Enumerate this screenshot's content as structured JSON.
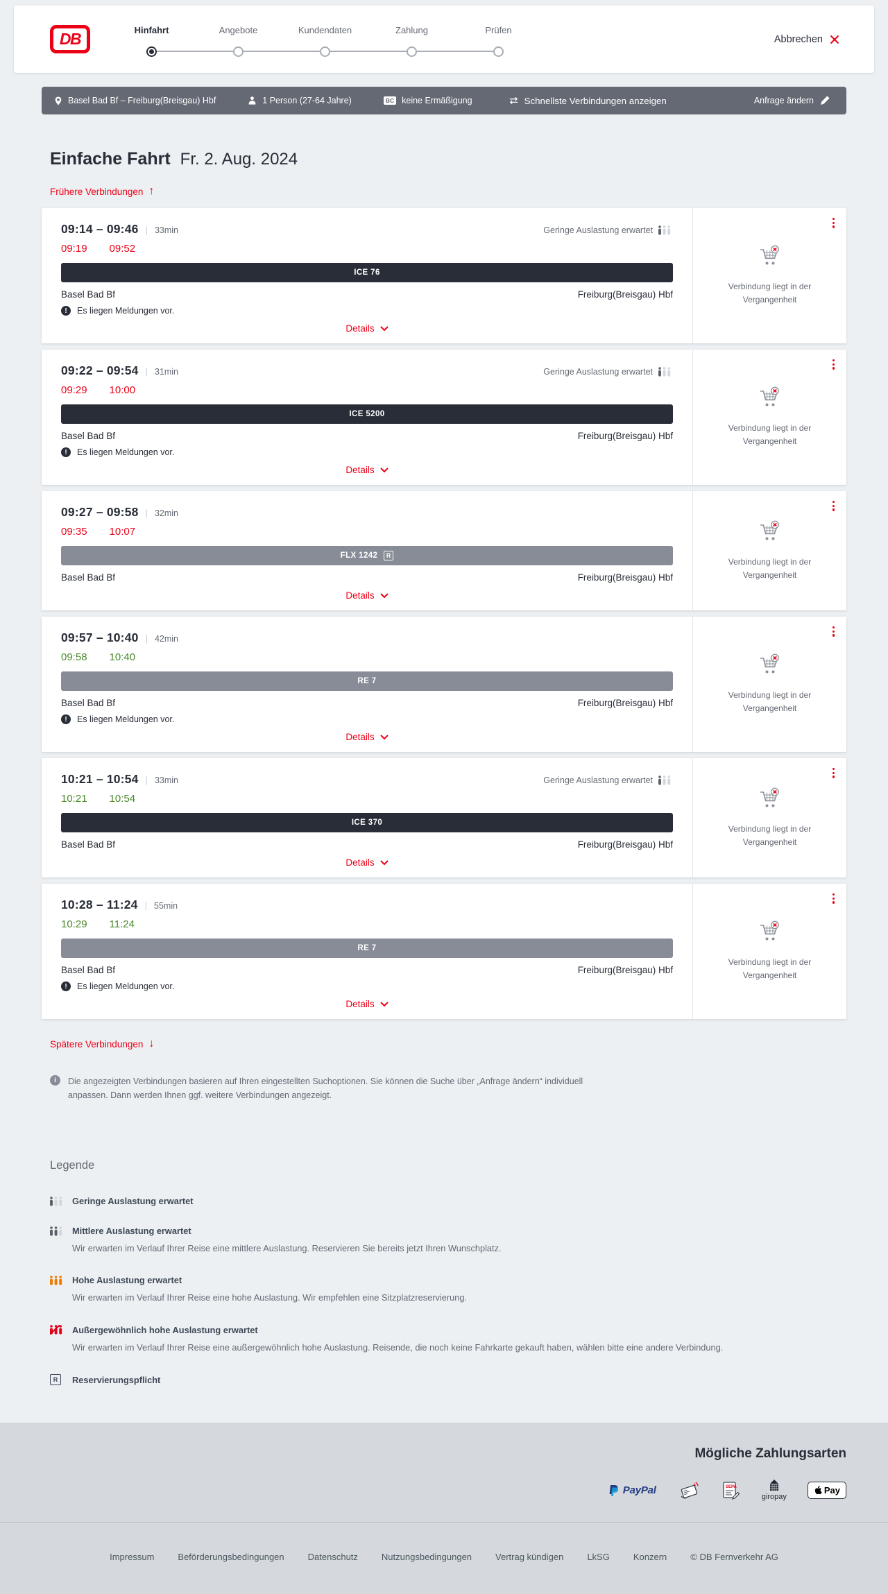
{
  "header": {
    "logo_text": "DB",
    "steps": [
      {
        "label": "Hinfahrt"
      },
      {
        "label": "Angebote"
      },
      {
        "label": "Kundendaten"
      },
      {
        "label": "Zahlung"
      },
      {
        "label": "Prüfen"
      }
    ],
    "active_step": 0,
    "cancel_label": "Abbrechen"
  },
  "query_bar": {
    "route": "Basel Bad Bf – Freiburg(Breisgau) Hbf",
    "passengers": "1 Person (27-64 Jahre)",
    "bahncard_badge": "BC",
    "discount": "keine Ermäßigung",
    "view_option": "Schnellste Verbindungen anzeigen",
    "edit_request": "Anfrage ändern"
  },
  "results": {
    "title": "Einfache Fahrt",
    "date": "Fr. 2. Aug. 2024",
    "earlier_link": "Frühere Verbindungen",
    "later_link": "Spätere Verbindungen",
    "details_label": "Details",
    "past_note": "Verbindung liegt in der Vergangenheit",
    "info_note": "Die angezeigten Verbindungen basieren auf Ihren eingestellten Suchoptionen. Sie können die Suche über „Anfrage ändern“ individuell anpassen. Dann werden Ihnen ggf. weitere Verbindungen angezeigt."
  },
  "connections": [
    {
      "planned": "09:14 – 09:46",
      "duration": "33min",
      "occupancy": "Geringe Auslastung erwartet",
      "actual_departure": "09:19",
      "actual_arrival": "09:52",
      "status": "delayed",
      "train": "ICE 76",
      "train_class": "ice",
      "reservation_required": false,
      "from": "Basel Bad Bf",
      "to": "Freiburg(Breisgau) Hbf",
      "message": "Es liegen Meldungen vor."
    },
    {
      "planned": "09:22 – 09:54",
      "duration": "31min",
      "occupancy": "Geringe Auslastung erwartet",
      "actual_departure": "09:29",
      "actual_arrival": "10:00",
      "status": "delayed",
      "train": "ICE 5200",
      "train_class": "ice",
      "reservation_required": false,
      "from": "Basel Bad Bf",
      "to": "Freiburg(Breisgau) Hbf",
      "message": "Es liegen Meldungen vor."
    },
    {
      "planned": "09:27 – 09:58",
      "duration": "32min",
      "occupancy": null,
      "actual_departure": "09:35",
      "actual_arrival": "10:07",
      "status": "delayed",
      "train": "FLX 1242",
      "train_class": "regio",
      "reservation_required": true,
      "from": "Basel Bad Bf",
      "to": "Freiburg(Breisgau) Hbf",
      "message": null
    },
    {
      "planned": "09:57 – 10:40",
      "duration": "42min",
      "occupancy": null,
      "actual_departure": "09:58",
      "actual_arrival": "10:40",
      "status": "ontime",
      "train": "RE 7",
      "train_class": "regio",
      "reservation_required": false,
      "from": "Basel Bad Bf",
      "to": "Freiburg(Breisgau) Hbf",
      "message": "Es liegen Meldungen vor."
    },
    {
      "planned": "10:21 – 10:54",
      "duration": "33min",
      "occupancy": "Geringe Auslastung erwartet",
      "actual_departure": "10:21",
      "actual_arrival": "10:54",
      "status": "ontime",
      "train": "ICE 370",
      "train_class": "ice",
      "reservation_required": false,
      "from": "Basel Bad Bf",
      "to": "Freiburg(Breisgau) Hbf",
      "message": null
    },
    {
      "planned": "10:28 – 11:24",
      "duration": "55min",
      "occupancy": null,
      "actual_departure": "10:29",
      "actual_arrival": "11:24",
      "status": "ontime",
      "train": "RE 7",
      "train_class": "regio",
      "reservation_required": false,
      "from": "Basel Bad Bf",
      "to": "Freiburg(Breisgau) Hbf",
      "message": "Es liegen Meldungen vor."
    }
  ],
  "legend": {
    "title": "Legende",
    "items": [
      {
        "icon": "occupancy-low",
        "label": "Geringe Auslastung erwartet",
        "desc": null
      },
      {
        "icon": "occupancy-medium",
        "label": "Mittlere Auslastung erwartet",
        "desc": "Wir erwarten im Verlauf Ihrer Reise eine mittlere Auslastung. Reservieren Sie bereits jetzt Ihren Wunschplatz."
      },
      {
        "icon": "occupancy-high",
        "label": "Hohe Auslastung erwartet",
        "desc": "Wir erwarten im Verlauf Ihrer Reise eine hohe Auslastung. Wir empfehlen eine Sitzplatzreservierung."
      },
      {
        "icon": "occupancy-exceptional",
        "label": "Außergewöhnlich hohe Auslastung erwartet",
        "desc": "Wir erwarten im Verlauf Ihrer Reise eine außergewöhnlich hohe Auslastung. Reisende, die noch keine Fahrkarte gekauft haben, wählen bitte eine andere Verbindung."
      },
      {
        "icon": "reservation",
        "label": "Reservierungspflicht",
        "desc": null
      }
    ]
  },
  "payment": {
    "title": "Mögliche Zahlungsarten",
    "labels": {
      "paypal": "PayPal",
      "sepa": "SEPA",
      "giropay": "giropay",
      "applepay": "Pay"
    },
    "methods": [
      "PayPal",
      "Kreditkarte",
      "SEPA-Lastschrift",
      "giropay",
      "Apple Pay"
    ]
  },
  "footer": {
    "links": [
      "Impressum",
      "Beförderungsbedingungen",
      "Datenschutz",
      "Nutzungsbedingungen",
      "Vertrag kündigen",
      "LkSG",
      "Konzern"
    ],
    "copyright": "© DB Fernverkehr AG"
  },
  "colors": {
    "accent_red": "#ec0016",
    "dark": "#282d37",
    "bar_gray": "#646973",
    "regio_gray": "#878c96",
    "ontime_green": "#4a8b2c"
  }
}
